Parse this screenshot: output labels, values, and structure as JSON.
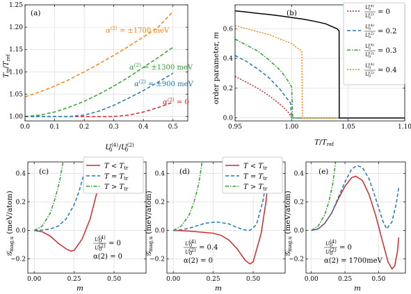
{
  "colors": {
    "red": "#d62728",
    "blue": "#1f77b4",
    "green": "#2ca02c",
    "orange": "#ff7f0e",
    "black": "#000000",
    "grid": "#d6d6d6"
  },
  "chart_data": [
    {
      "id": "a",
      "panel_label": "(a)",
      "type": "line",
      "xlabel": "U_0^(4)/U_0^(2)",
      "ylabel": "T_tr/T_ref",
      "xlim": [
        0,
        0.55
      ],
      "ylim": [
        0.99,
        1.25
      ],
      "xticks": [
        0.0,
        0.1,
        0.2,
        0.3,
        0.4,
        0.5
      ],
      "xtick_labels": [
        "0.0",
        "0.1",
        "0.2",
        "0.3",
        "0.4",
        "0.5"
      ],
      "yticks": [
        1.0,
        1.05,
        1.1,
        1.15,
        1.2,
        1.25
      ],
      "ytick_labels": [
        "1.00",
        "1.05",
        "1.10",
        "1.15",
        "1.20",
        "1.25"
      ],
      "grid": true,
      "series": [
        {
          "name": "α(2) = 0",
          "color_key": "red",
          "style": "dashed",
          "x": [
            0,
            0.1,
            0.2,
            0.3,
            0.35,
            0.4,
            0.45,
            0.5
          ],
          "y": [
            1.0,
            1.0,
            1.0,
            1.0,
            1.003,
            1.01,
            1.02,
            1.032
          ],
          "label_position": "right"
        },
        {
          "name": "α(2) = ±900 meV",
          "color_key": "blue",
          "style": "dashed",
          "x": [
            0,
            0.1,
            0.15,
            0.2,
            0.25,
            0.3,
            0.35,
            0.4,
            0.45,
            0.5
          ],
          "y": [
            1.0,
            1.0,
            1.0,
            1.003,
            1.012,
            1.025,
            1.041,
            1.058,
            1.077,
            1.097
          ],
          "label_position": "right"
        },
        {
          "name": "α(2) = ±1300 meV",
          "color_key": "green",
          "style": "dashed",
          "x": [
            0,
            0.05,
            0.1,
            0.15,
            0.2,
            0.25,
            0.3,
            0.35,
            0.4,
            0.45,
            0.5
          ],
          "y": [
            1.0,
            1.003,
            1.01,
            1.021,
            1.034,
            1.05,
            1.068,
            1.088,
            1.11,
            1.132,
            1.155
          ],
          "label_position": "right"
        },
        {
          "name": "α(2) = ±1700 meV",
          "color_key": "orange",
          "style": "dashed",
          "x": [
            0,
            0.05,
            0.1,
            0.15,
            0.2,
            0.25,
            0.3,
            0.35,
            0.4,
            0.45,
            0.5
          ],
          "y": [
            1.044,
            1.055,
            1.068,
            1.083,
            1.1,
            1.118,
            1.137,
            1.157,
            1.178,
            1.2,
            1.235
          ],
          "label_position": "top"
        }
      ]
    },
    {
      "id": "b",
      "panel_label": "(b)",
      "type": "line",
      "xlabel": "T/T_ref",
      "ylabel": "order parameter, m",
      "xlim": [
        0.95,
        1.1
      ],
      "ylim": [
        -0.02,
        0.76
      ],
      "xticks": [
        0.95,
        1.0,
        1.05,
        1.1
      ],
      "xtick_labels": [
        "0.95",
        "1.00",
        "1.05",
        "1.10"
      ],
      "yticks": [
        0.0,
        0.2,
        0.4,
        0.6
      ],
      "ytick_labels": [
        "0.0",
        "0.2",
        "0.4",
        "0.6"
      ],
      "grid": true,
      "legend": {
        "placement": "top-right",
        "entries": [
          {
            "label_prefix": "U_0^(4)/U_0^(2) = 0",
            "value": "0",
            "color_key": "red",
            "style": "dotted"
          },
          {
            "label_prefix": "U_0^(4)/U_0^(2) = 0.2",
            "value": "0.2",
            "color_key": "blue",
            "style": "dashed"
          },
          {
            "label_prefix": "U_0^(4)/U_0^(2) = 0.3",
            "value": "0.3",
            "color_key": "green",
            "style": "dashdot"
          },
          {
            "label_prefix": "U_0^(4)/U_0^(2) = 0.4",
            "value": "0.4",
            "color_key": "orange",
            "style": "dotted"
          }
        ]
      },
      "series": [
        {
          "name": "U_0^(4)/U_0^(2) = 0",
          "color_key": "red",
          "style": "dotted",
          "x": [
            0.95,
            0.96,
            0.97,
            0.98,
            0.99,
            0.995,
            0.998,
            1.0,
            1.01,
            1.1
          ],
          "y": [
            0.28,
            0.24,
            0.2,
            0.15,
            0.09,
            0.055,
            0.03,
            0.0,
            0.0,
            0.0
          ]
        },
        {
          "name": "U_0^(4)/U_0^(2) = 0.2",
          "color_key": "blue",
          "style": "dashed",
          "x": [
            0.95,
            0.96,
            0.97,
            0.98,
            0.99,
            0.995,
            0.999,
            1.0,
            1.01,
            1.1
          ],
          "y": [
            0.42,
            0.38,
            0.33,
            0.27,
            0.19,
            0.14,
            0.1,
            0.0,
            0.0,
            0.0
          ]
        },
        {
          "name": "U_0^(4)/U_0^(2) = 0.3",
          "color_key": "green",
          "style": "dashdot",
          "x": [
            0.95,
            0.96,
            0.97,
            0.98,
            0.99,
            0.995,
            0.999,
            1.0,
            1.001,
            1.01,
            1.1
          ],
          "y": [
            0.53,
            0.49,
            0.45,
            0.39,
            0.32,
            0.27,
            0.22,
            0.21,
            0.0,
            0.0,
            0.0
          ]
        },
        {
          "name": "U_0^(4)/U_0^(2) = 0.4",
          "color_key": "orange",
          "style": "dotted",
          "x": [
            0.95,
            0.96,
            0.97,
            0.98,
            0.99,
            1.0,
            1.005,
            1.009,
            1.0095,
            1.02,
            1.1
          ],
          "y": [
            0.62,
            0.6,
            0.58,
            0.56,
            0.53,
            0.5,
            0.47,
            0.45,
            0.0,
            0.0,
            0.0
          ]
        },
        {
          "name": "black",
          "color_key": "black",
          "style": "solid",
          "x": [
            0.95,
            0.96,
            0.97,
            0.98,
            0.99,
            1.0,
            1.01,
            1.02,
            1.03,
            1.04,
            1.042,
            1.0421,
            1.1
          ],
          "y": [
            0.72,
            0.712,
            0.703,
            0.695,
            0.686,
            0.675,
            0.664,
            0.65,
            0.633,
            0.6,
            0.585,
            0.0,
            0.0
          ]
        }
      ]
    },
    {
      "id": "c",
      "panel_label": "(c)",
      "type": "line",
      "xlabel": "m",
      "ylabel": "G_mag,u (meV/atom)",
      "xlim": [
        -0.04,
        0.7
      ],
      "ylim": [
        -0.3,
        0.48
      ],
      "xticks": [
        0.0,
        0.25,
        0.5
      ],
      "xtick_labels": [
        "0.00",
        "0.25",
        "0.50"
      ],
      "yticks": [
        -0.2,
        0.0,
        0.2,
        0.4
      ],
      "ytick_labels": [
        "−0.2",
        "0.0",
        "0.2",
        "0.4"
      ],
      "grid": true,
      "legend": {
        "placement": "top-right",
        "entries": [
          {
            "label": "T < T_tr",
            "color_key": "red",
            "style": "solid"
          },
          {
            "label": "T = T_tr",
            "color_key": "blue",
            "style": "dashed"
          },
          {
            "label": "T > T_tr",
            "color_key": "green",
            "style": "dashdot"
          }
        ]
      },
      "annotation": {
        "ratio_value": "= 0",
        "alpha": "α(2) = 0"
      },
      "series": [
        {
          "name": "T < T_tr",
          "color_key": "red",
          "style": "solid",
          "x": [
            0,
            0.05,
            0.1,
            0.15,
            0.2,
            0.23,
            0.25,
            0.3,
            0.35,
            0.4,
            0.44
          ],
          "y": [
            0,
            -0.01,
            -0.04,
            -0.09,
            -0.13,
            -0.145,
            -0.14,
            -0.06,
            0.08,
            0.3,
            0.48
          ]
        },
        {
          "name": "T = T_tr",
          "color_key": "blue",
          "style": "dashed",
          "x": [
            0,
            0.05,
            0.1,
            0.15,
            0.2,
            0.25,
            0.28,
            0.3,
            0.33
          ],
          "y": [
            0,
            0.002,
            0.01,
            0.03,
            0.08,
            0.18,
            0.27,
            0.35,
            0.48
          ]
        },
        {
          "name": "T > T_tr",
          "color_key": "green",
          "style": "dashdot",
          "x": [
            0,
            0.05,
            0.1,
            0.13,
            0.16,
            0.18
          ],
          "y": [
            0,
            0.03,
            0.12,
            0.22,
            0.35,
            0.48
          ]
        }
      ]
    },
    {
      "id": "d",
      "panel_label": "(d)",
      "type": "line",
      "xlabel": "m",
      "ylabel": "G_mag,u (meV/atom)",
      "xlim": [
        -0.04,
        0.7
      ],
      "ylim": [
        -0.3,
        0.48
      ],
      "xticks": [
        0.0,
        0.25,
        0.5
      ],
      "xtick_labels": [
        "0.00",
        "0.25",
        "0.50"
      ],
      "yticks": [
        -0.2,
        0.0,
        0.2,
        0.4
      ],
      "ytick_labels": [
        "−0.2",
        "0.0",
        "0.2",
        "0.4"
      ],
      "grid": true,
      "legend": {
        "placement": "top-right",
        "entries": [
          {
            "label": "T < T_tr",
            "color_key": "red",
            "style": "solid"
          },
          {
            "label": "T = T_tr",
            "color_key": "blue",
            "style": "dashed"
          },
          {
            "label": "T > T_tr",
            "color_key": "green",
            "style": "dashdot"
          }
        ]
      },
      "annotation": {
        "ratio_value": "= 0.4",
        "alpha": "α(2) = 0"
      },
      "series": [
        {
          "name": "T < T_tr",
          "color_key": "red",
          "style": "solid",
          "x": [
            0,
            0.1,
            0.2,
            0.25,
            0.3,
            0.35,
            0.4,
            0.45,
            0.48,
            0.5,
            0.55,
            0.58,
            0.6
          ],
          "y": [
            0,
            -0.005,
            -0.015,
            -0.02,
            -0.035,
            -0.07,
            -0.13,
            -0.21,
            -0.235,
            -0.22,
            -0.02,
            0.2,
            0.42
          ]
        },
        {
          "name": "T = T_tr",
          "color_key": "blue",
          "style": "dashed",
          "x": [
            0,
            0.05,
            0.1,
            0.15,
            0.2,
            0.27,
            0.35,
            0.4,
            0.45,
            0.48,
            0.52,
            0.56,
            0.6
          ],
          "y": [
            0,
            0.004,
            0.015,
            0.033,
            0.05,
            0.06,
            0.045,
            0.02,
            0.002,
            0.0,
            0.04,
            0.2,
            0.46
          ]
        },
        {
          "name": "T > T_tr",
          "color_key": "green",
          "style": "dashdot",
          "x": [
            0,
            0.05,
            0.1,
            0.13,
            0.16,
            0.18
          ],
          "y": [
            0,
            0.03,
            0.11,
            0.2,
            0.33,
            0.48
          ]
        }
      ]
    },
    {
      "id": "e",
      "panel_label": "(e)",
      "type": "line",
      "xlabel": "m",
      "ylabel": "G_mag,u (meV/atom)",
      "xlim": [
        -0.04,
        0.7
      ],
      "ylim": [
        -0.3,
        0.48
      ],
      "xticks": [
        0.0,
        0.25,
        0.5
      ],
      "xtick_labels": [
        "0.00",
        "0.25",
        "0.50"
      ],
      "yticks": [
        -0.2,
        0.0,
        0.2,
        0.4
      ],
      "ytick_labels": [
        "−0.2",
        "0.0",
        "0.2",
        "0.4"
      ],
      "grid": true,
      "annotation": {
        "ratio_value": "= 0",
        "alpha": "α(2) = 1700meV"
      },
      "series": [
        {
          "name": "T < T_tr",
          "color_key": "red",
          "style": "solid",
          "x": [
            0,
            0.05,
            0.1,
            0.15,
            0.2,
            0.25,
            0.3,
            0.33,
            0.38,
            0.43,
            0.48,
            0.53,
            0.57,
            0.6,
            0.62,
            0.64,
            0.65
          ],
          "y": [
            0,
            0.01,
            0.05,
            0.12,
            0.22,
            0.31,
            0.37,
            0.38,
            0.35,
            0.25,
            0.1,
            -0.08,
            -0.22,
            -0.27,
            -0.25,
            -0.15,
            -0.05
          ]
        },
        {
          "name": "T = T_tr",
          "color_key": "blue",
          "style": "dashed",
          "x": [
            0,
            0.05,
            0.1,
            0.15,
            0.2,
            0.25,
            0.3,
            0.34,
            0.38,
            0.43,
            0.48,
            0.53,
            0.56,
            0.6,
            0.63,
            0.65
          ],
          "y": [
            0,
            0.01,
            0.05,
            0.12,
            0.23,
            0.34,
            0.43,
            0.455,
            0.44,
            0.36,
            0.22,
            0.07,
            0.01,
            0.06,
            0.18,
            0.3
          ]
        },
        {
          "name": "T > T_tr",
          "color_key": "green",
          "style": "dashdot",
          "x": [
            0,
            0.05,
            0.1,
            0.13,
            0.16,
            0.18
          ],
          "y": [
            0,
            0.03,
            0.11,
            0.2,
            0.33,
            0.48
          ]
        }
      ]
    }
  ]
}
